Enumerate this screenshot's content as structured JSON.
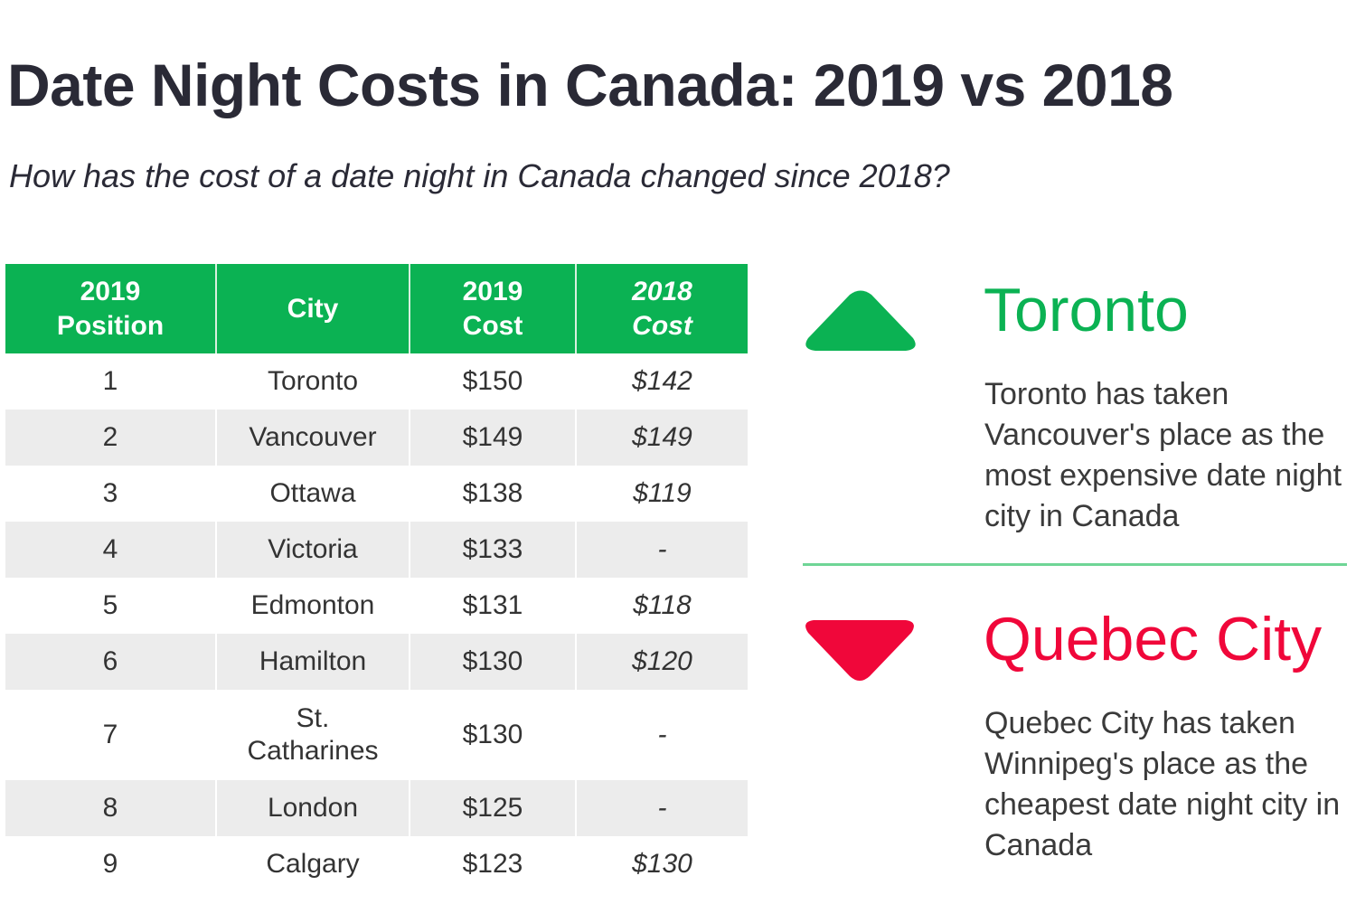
{
  "title": "Date Night Costs in Canada: 2019 vs 2018",
  "subtitle": "How has the cost of a date night in Canada changed since 2018?",
  "colors": {
    "header_green": "#0bb253",
    "up_green": "#0bb253",
    "down_red": "#f0073a",
    "divider_green": "#6fd596"
  },
  "chart_data": {
    "type": "table",
    "columns": [
      {
        "line1": "2019",
        "line2": "Position"
      },
      {
        "line1": "City",
        "line2": ""
      },
      {
        "line1": "2019",
        "line2": "Cost"
      },
      {
        "line1": "2018",
        "line2": "Cost"
      }
    ],
    "rows": [
      {
        "position": "1",
        "city": "Toronto",
        "city_line2": "",
        "cost_2019": "$150",
        "cost_2018": "$142"
      },
      {
        "position": "2",
        "city": "Vancouver",
        "city_line2": "",
        "cost_2019": "$149",
        "cost_2018": "$149"
      },
      {
        "position": "3",
        "city": "Ottawa",
        "city_line2": "",
        "cost_2019": "$138",
        "cost_2018": "$119"
      },
      {
        "position": "4",
        "city": "Victoria",
        "city_line2": "",
        "cost_2019": "$133",
        "cost_2018": "-"
      },
      {
        "position": "5",
        "city": "Edmonton",
        "city_line2": "",
        "cost_2019": "$131",
        "cost_2018": "$118"
      },
      {
        "position": "6",
        "city": "Hamilton",
        "city_line2": "",
        "cost_2019": "$130",
        "cost_2018": "$120"
      },
      {
        "position": "7",
        "city": "St.",
        "city_line2": "Catharines",
        "cost_2019": "$130",
        "cost_2018": "-"
      },
      {
        "position": "8",
        "city": "London",
        "city_line2": "",
        "cost_2019": "$125",
        "cost_2018": "-"
      },
      {
        "position": "9",
        "city": "Calgary",
        "city_line2": "",
        "cost_2019": "$123",
        "cost_2018": "$130"
      }
    ]
  },
  "highlights": {
    "up": {
      "icon": "triangle-up-icon",
      "city": "Toronto",
      "description": "Toronto has taken Vancouver's place as the most expensive date night city in Canada"
    },
    "down": {
      "icon": "triangle-down-icon",
      "city": "Quebec City",
      "description": "Quebec City has taken Winnipeg's place as the cheapest date night city in Canada"
    }
  }
}
